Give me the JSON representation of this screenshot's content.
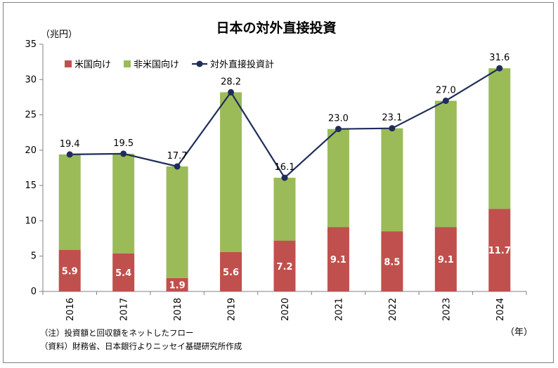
{
  "chart_data": {
    "type": "bar",
    "subtype": "stacked-bar-with-line",
    "title": "日本の対外直接投資",
    "y_unit_label": "（兆円）",
    "x_unit_label": "（年）",
    "categories": [
      "2016",
      "2017",
      "2018",
      "2019",
      "2020",
      "2021",
      "2022",
      "2023",
      "2024"
    ],
    "series": [
      {
        "name": "米国向け",
        "type": "bar",
        "color": "#c0504d",
        "values": [
          5.9,
          5.4,
          1.9,
          5.6,
          7.2,
          9.1,
          8.5,
          9.1,
          11.7
        ],
        "labels": [
          "5.9",
          "5.4",
          "1.9",
          "5.6",
          "7.2",
          "9.1",
          "8.5",
          "9.1",
          "11.7"
        ]
      },
      {
        "name": "非米国向け",
        "type": "bar",
        "color": "#9bbb59",
        "values": [
          13.5,
          14.1,
          15.8,
          22.6,
          8.9,
          13.9,
          14.6,
          17.9,
          19.9
        ]
      },
      {
        "name": "対外直接投資計",
        "type": "line",
        "color": "#1f2d5a",
        "values": [
          19.4,
          19.5,
          17.7,
          28.2,
          16.1,
          23.0,
          23.1,
          27.0,
          31.6
        ],
        "labels": [
          "19.4",
          "19.5",
          "17.7",
          "28.2",
          "16.1",
          "23.0",
          "23.1",
          "27.0",
          "31.6"
        ]
      }
    ],
    "ylim": [
      0,
      35
    ],
    "yticks": [
      "0",
      "5",
      "10",
      "15",
      "20",
      "25",
      "30",
      "35"
    ],
    "grid": false,
    "legend_position": "top-left"
  },
  "notes": [
    "（注）投資額と回収額をネットしたフロー",
    "（資料）財務省、日本銀行よりニッセイ基礎研究所作成"
  ]
}
